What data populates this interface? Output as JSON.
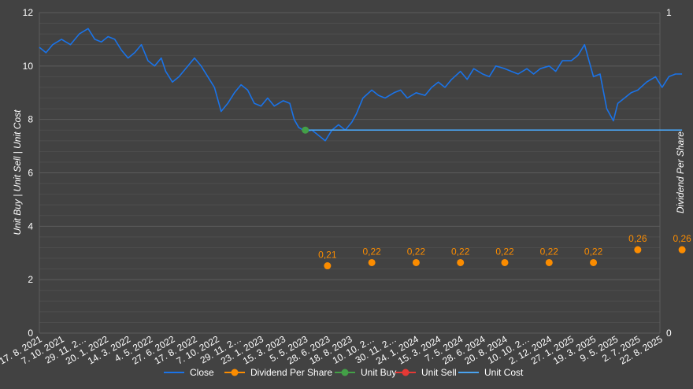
{
  "colors": {
    "background": "#424242",
    "grid": "#5c5c5c",
    "text": "#ffffff",
    "close": "#1a73e8",
    "dividend": "#fb8c00",
    "unit_buy": "#43a047",
    "unit_sell": "#e53935",
    "unit_cost": "#4aa3f0"
  },
  "chart_data": {
    "type": "line",
    "y_left_label": "Unit Buy | Unit Sell | Unit Cost",
    "y_right_label": "Dividend Per Share",
    "y_left_ticks": [
      "0",
      "2",
      "4",
      "6",
      "8",
      "10",
      "12"
    ],
    "y_right_ticks": [
      "0",
      "1"
    ],
    "ylim_left": [
      0,
      12
    ],
    "ylim_right": [
      0,
      1
    ],
    "grid": true,
    "legend_position": "bottom",
    "x_tick_labels": [
      "17. 8. 2021",
      "7. 10. 2021",
      "29. 11. 2…",
      "20. 1. 2022",
      "14. 3. 2022",
      "4. 5. 2022",
      "27. 6. 2022",
      "17. 8. 2022",
      "7. 10. 2022",
      "29. 11. 2…",
      "23. 1. 2023",
      "15. 3. 2023",
      "5. 5. 2023",
      "28. 6. 2023",
      "18. 8. 2023",
      "10. 10. 2…",
      "30. 11. 2…",
      "24. 1. 2024",
      "15. 3. 2024",
      "7. 5. 2024",
      "28. 6. 2024",
      "20. 8. 2024",
      "10. 10. 2…",
      "2. 12. 2024",
      "27. 1. 2025",
      "19. 3. 2025",
      "9. 5. 2025",
      "2. 7. 2025",
      "22. 8. 2025"
    ],
    "series": [
      {
        "name": "Close",
        "type": "line",
        "axis": "left",
        "points": [
          [
            0,
            10.7
          ],
          [
            0.3,
            10.5
          ],
          [
            0.6,
            10.8
          ],
          [
            1.0,
            11.0
          ],
          [
            1.4,
            10.8
          ],
          [
            1.8,
            11.2
          ],
          [
            2.2,
            11.4
          ],
          [
            2.5,
            11.0
          ],
          [
            2.8,
            10.9
          ],
          [
            3.1,
            11.1
          ],
          [
            3.4,
            11.0
          ],
          [
            3.7,
            10.6
          ],
          [
            4.0,
            10.3
          ],
          [
            4.3,
            10.5
          ],
          [
            4.6,
            10.8
          ],
          [
            4.9,
            10.2
          ],
          [
            5.2,
            10.0
          ],
          [
            5.5,
            10.3
          ],
          [
            5.7,
            9.8
          ],
          [
            6.0,
            9.4
          ],
          [
            6.3,
            9.6
          ],
          [
            6.6,
            9.9
          ],
          [
            7.0,
            10.3
          ],
          [
            7.3,
            10.0
          ],
          [
            7.6,
            9.6
          ],
          [
            7.9,
            9.2
          ],
          [
            8.2,
            8.3
          ],
          [
            8.5,
            8.6
          ],
          [
            8.8,
            9.0
          ],
          [
            9.1,
            9.3
          ],
          [
            9.4,
            9.1
          ],
          [
            9.7,
            8.6
          ],
          [
            10.0,
            8.5
          ],
          [
            10.3,
            8.8
          ],
          [
            10.6,
            8.5
          ],
          [
            11.0,
            8.7
          ],
          [
            11.3,
            8.6
          ],
          [
            11.5,
            8.0
          ],
          [
            11.7,
            7.7
          ],
          [
            12.0,
            7.55
          ],
          [
            12.3,
            7.6
          ],
          [
            12.6,
            7.4
          ],
          [
            12.9,
            7.2
          ],
          [
            13.2,
            7.6
          ],
          [
            13.5,
            7.8
          ],
          [
            13.8,
            7.6
          ],
          [
            14.1,
            7.9
          ],
          [
            14.3,
            8.2
          ],
          [
            14.6,
            8.8
          ],
          [
            15.0,
            9.1
          ],
          [
            15.3,
            8.9
          ],
          [
            15.6,
            8.8
          ],
          [
            16.0,
            9.0
          ],
          [
            16.3,
            9.1
          ],
          [
            16.6,
            8.8
          ],
          [
            17.0,
            9.0
          ],
          [
            17.4,
            8.9
          ],
          [
            17.7,
            9.2
          ],
          [
            18.0,
            9.4
          ],
          [
            18.3,
            9.2
          ],
          [
            18.6,
            9.5
          ],
          [
            19.0,
            9.8
          ],
          [
            19.3,
            9.5
          ],
          [
            19.6,
            9.9
          ],
          [
            20.0,
            9.7
          ],
          [
            20.3,
            9.6
          ],
          [
            20.6,
            10.0
          ],
          [
            21.0,
            9.9
          ],
          [
            21.3,
            9.8
          ],
          [
            21.6,
            9.7
          ],
          [
            22.0,
            9.9
          ],
          [
            22.3,
            9.7
          ],
          [
            22.6,
            9.9
          ],
          [
            23.0,
            10.0
          ],
          [
            23.3,
            9.8
          ],
          [
            23.6,
            10.2
          ],
          [
            24.0,
            10.2
          ],
          [
            24.3,
            10.4
          ],
          [
            24.6,
            10.8
          ],
          [
            24.8,
            10.2
          ],
          [
            25.0,
            9.6
          ],
          [
            25.3,
            9.7
          ],
          [
            25.6,
            8.4
          ],
          [
            25.9,
            7.95
          ],
          [
            26.1,
            8.6
          ],
          [
            26.4,
            8.8
          ],
          [
            26.7,
            9.0
          ],
          [
            27.0,
            9.1
          ],
          [
            27.4,
            9.4
          ],
          [
            27.8,
            9.6
          ],
          [
            28.1,
            9.2
          ],
          [
            28.4,
            9.6
          ],
          [
            28.7,
            9.7
          ],
          [
            29.0,
            9.7
          ]
        ]
      },
      {
        "name": "Dividend Per Share",
        "type": "scatter",
        "axis": "right",
        "points": [
          {
            "x": 13.0,
            "y": 0.21,
            "label": "0,21"
          },
          {
            "x": 15.0,
            "y": 0.22,
            "label": "0,22"
          },
          {
            "x": 17.0,
            "y": 0.22,
            "label": "0,22"
          },
          {
            "x": 19.0,
            "y": 0.22,
            "label": "0,22"
          },
          {
            "x": 21.0,
            "y": 0.22,
            "label": "0,22"
          },
          {
            "x": 23.0,
            "y": 0.22,
            "label": "0,22"
          },
          {
            "x": 25.0,
            "y": 0.22,
            "label": "0,22"
          },
          {
            "x": 27.0,
            "y": 0.26,
            "label": "0,26"
          },
          {
            "x": 29.0,
            "y": 0.26,
            "label": "0,26"
          }
        ]
      },
      {
        "name": "Unit Buy",
        "type": "scatter",
        "axis": "left",
        "points": [
          {
            "x": 12.0,
            "y": 7.6
          }
        ]
      },
      {
        "name": "Unit Sell",
        "type": "scatter",
        "axis": "left",
        "points": []
      },
      {
        "name": "Unit Cost",
        "type": "line",
        "axis": "left",
        "points": [
          [
            12.0,
            7.6
          ],
          [
            29.0,
            7.6
          ]
        ]
      }
    ]
  }
}
